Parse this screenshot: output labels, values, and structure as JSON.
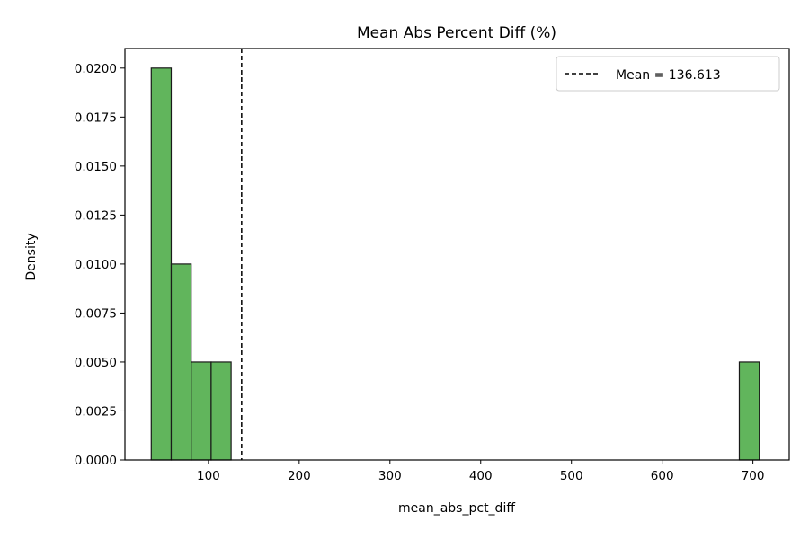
{
  "chart_data": {
    "type": "bar",
    "subtype": "histogram",
    "title": "Mean Abs Percent Diff (%)",
    "xlabel": "mean_abs_pct_diff",
    "ylabel": "Density",
    "xlim": [
      8,
      740
    ],
    "ylim": [
      0,
      0.021
    ],
    "x_ticks": [
      100,
      200,
      300,
      400,
      500,
      600,
      700
    ],
    "x_tick_labels": [
      "100",
      "200",
      "300",
      "400",
      "500",
      "600",
      "700"
    ],
    "y_ticks": [
      0,
      0.0025,
      0.005,
      0.0075,
      0.01,
      0.0125,
      0.015,
      0.0175,
      0.02
    ],
    "y_tick_labels": [
      "0.0000",
      "0.0025",
      "0.0050",
      "0.0075",
      "0.0100",
      "0.0125",
      "0.0150",
      "0.0175",
      "0.0200"
    ],
    "bins": [
      {
        "x0": 37,
        "x1": 59,
        "density": 0.02
      },
      {
        "x0": 59,
        "x1": 81,
        "density": 0.01
      },
      {
        "x0": 81,
        "x1": 103,
        "density": 0.005
      },
      {
        "x0": 103,
        "x1": 125,
        "density": 0.005
      },
      {
        "x0": 685,
        "x1": 707,
        "density": 0.005
      }
    ],
    "mean_line": {
      "x": 136.613,
      "label": "Mean = 136.613"
    },
    "bar_color": "#61b55c",
    "bar_edge_color": "#1a1a1a",
    "legend": {
      "placement": "top-right",
      "entries": [
        "Mean = 136.613"
      ]
    },
    "grid": false
  }
}
